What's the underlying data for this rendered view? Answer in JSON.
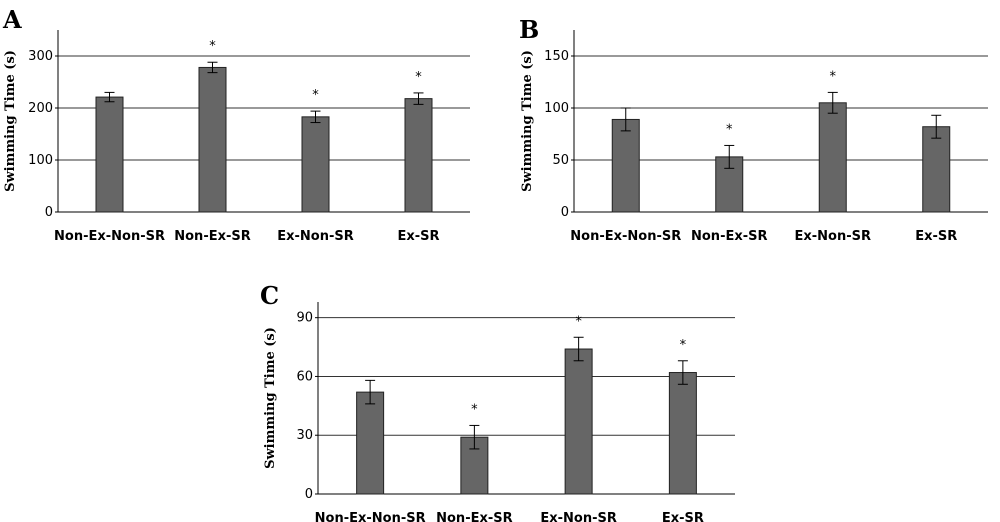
{
  "chart_data": [
    {
      "type": "bar",
      "panel": "A",
      "ylabel": "Swimming Time (s)",
      "ylim": [
        0,
        350
      ],
      "yticks": [
        0,
        100,
        200,
        300
      ],
      "grid": true,
      "categories": [
        "Non-Ex-Non-SR",
        "Non-Ex-SR",
        "Ex-Non-SR",
        "Ex-SR"
      ],
      "values": [
        221,
        278,
        183,
        218
      ],
      "errors": [
        9,
        10,
        11,
        11
      ],
      "significance": [
        "",
        "*",
        "*",
        "*"
      ],
      "bar_color": "#666666"
    },
    {
      "type": "bar",
      "panel": "B",
      "ylabel": "Swimming Time (s)",
      "ylim": [
        0,
        175
      ],
      "yticks": [
        0,
        50,
        100,
        150
      ],
      "grid": true,
      "categories": [
        "Non-Ex-Non-SR",
        "Non-Ex-SR",
        "Ex-Non-SR",
        "Ex-SR"
      ],
      "values": [
        89,
        53,
        105,
        82
      ],
      "errors": [
        11,
        11,
        10,
        11
      ],
      "significance": [
        "",
        "*",
        "*",
        ""
      ],
      "bar_color": "#666666"
    },
    {
      "type": "bar",
      "panel": "C",
      "ylabel": "Swimming Time (s)",
      "ylim": [
        0,
        98
      ],
      "yticks": [
        0,
        30,
        60,
        90
      ],
      "grid": true,
      "categories": [
        "Non-Ex-Non-SR",
        "Non-Ex-SR",
        "Ex-Non-SR",
        "Ex-SR"
      ],
      "values": [
        52,
        29,
        74,
        62
      ],
      "errors": [
        6,
        6,
        6,
        6
      ],
      "significance": [
        "",
        "*",
        "*",
        "*"
      ],
      "bar_color": "#666666"
    }
  ]
}
